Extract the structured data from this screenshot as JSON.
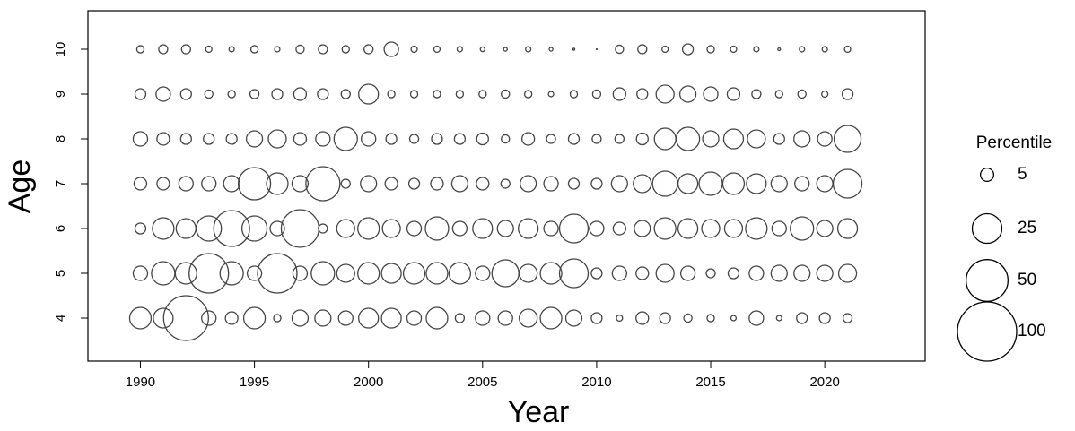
{
  "chart_data": {
    "type": "bubble",
    "xlabel": "Year",
    "ylabel": "Age",
    "x": [
      1990,
      1991,
      1992,
      1993,
      1994,
      1995,
      1996,
      1997,
      1998,
      1999,
      2000,
      2001,
      2002,
      2003,
      2004,
      2005,
      2006,
      2007,
      2008,
      2009,
      2010,
      2011,
      2012,
      2013,
      2014,
      2015,
      2016,
      2017,
      2018,
      2019,
      2020,
      2021
    ],
    "rows": [
      {
        "y": 4,
        "sizes": [
          13.2,
          11.1,
          57.4,
          5.9,
          4.5,
          13.2,
          1.5,
          7.4,
          7.4,
          5.9,
          11.1,
          11.1,
          5.9,
          13.2,
          2.3,
          5.9,
          5.9,
          9.2,
          13.2,
          7.4,
          3.3,
          1.1,
          4.5,
          3.3,
          1.9,
          1.5,
          0.8,
          5.9,
          0.8,
          3.3,
          3.3,
          2.3
        ]
      },
      {
        "y": 5,
        "sizes": [
          5.9,
          15.5,
          13.2,
          44.4,
          15.5,
          5.9,
          44.4,
          5.9,
          15.5,
          9.2,
          13.2,
          11.1,
          13.2,
          13.2,
          13.2,
          5.9,
          20.7,
          9.2,
          13.2,
          23.5,
          3.3,
          5.9,
          4.5,
          9.2,
          5.9,
          2.3,
          3.3,
          5.9,
          7.4,
          7.4,
          7.4,
          9.2
        ]
      },
      {
        "y": 6,
        "sizes": [
          3.3,
          13.2,
          11.1,
          18,
          36.7,
          18,
          5.9,
          40.5,
          2.3,
          9.2,
          13.2,
          9.2,
          5.9,
          15.5,
          5.9,
          11.1,
          7.4,
          11.1,
          5.9,
          23.5,
          5.9,
          4.5,
          7.4,
          13.2,
          11.1,
          9.2,
          9.2,
          13.2,
          5.9,
          15.5,
          7.4,
          11.1
        ]
      },
      {
        "y": 7,
        "sizes": [
          4.5,
          4.5,
          5.9,
          5.9,
          7.4,
          29.8,
          13.2,
          7.4,
          33.1,
          2.3,
          7.4,
          4.5,
          3.3,
          4.5,
          7.4,
          4.5,
          2.3,
          7.4,
          5.9,
          3.3,
          3.3,
          7.4,
          9.2,
          18,
          11.1,
          15.5,
          13.2,
          11.1,
          7.4,
          5.9,
          7.4,
          23.5
        ]
      },
      {
        "y": 8,
        "sizes": [
          5.9,
          4.5,
          3.3,
          3.3,
          3.3,
          7.4,
          9.2,
          4.5,
          5.9,
          15.5,
          5.9,
          3.3,
          2.3,
          3.3,
          3.3,
          3.9,
          1.9,
          4.5,
          2.3,
          3.3,
          2.3,
          2.3,
          3.9,
          13.2,
          15.5,
          7.4,
          11.1,
          9.2,
          3.3,
          7.4,
          5.9,
          20.7
        ]
      },
      {
        "y": 9,
        "sizes": [
          3.3,
          5.9,
          3.3,
          1.9,
          1.5,
          2.3,
          3.3,
          4.5,
          3.3,
          2.3,
          11.1,
          1.5,
          1.5,
          1.5,
          1.5,
          1.5,
          1.9,
          1.5,
          0.8,
          1.5,
          1.9,
          4.5,
          3.3,
          9.2,
          7.4,
          5.9,
          4.5,
          2.3,
          1.5,
          1.9,
          1.1,
          3.3
        ]
      },
      {
        "y": 10,
        "sizes": [
          1.5,
          2.3,
          2.3,
          1.1,
          0.8,
          1.5,
          0.8,
          1.9,
          2.3,
          1.5,
          2.3,
          5.9,
          1.1,
          1.1,
          0.8,
          0.6,
          0.4,
          0.8,
          0.4,
          0.1,
          0.02,
          1.9,
          2.3,
          1.1,
          3.3,
          1.5,
          1.1,
          0.8,
          0.2,
          0.8,
          0.8,
          1.1
        ]
      }
    ],
    "xlim": [
      1987.7,
      2024.4
    ],
    "xticks": [
      1990,
      1995,
      2000,
      2005,
      2010,
      2015,
      2020
    ],
    "ylim": [
      3.04,
      10.86
    ],
    "yticks": [
      4,
      5,
      6,
      7,
      8,
      9,
      10
    ],
    "color": "#444444",
    "size_legend": {
      "title": "Percentile",
      "values": [
        5,
        25,
        50,
        100
      ]
    }
  }
}
